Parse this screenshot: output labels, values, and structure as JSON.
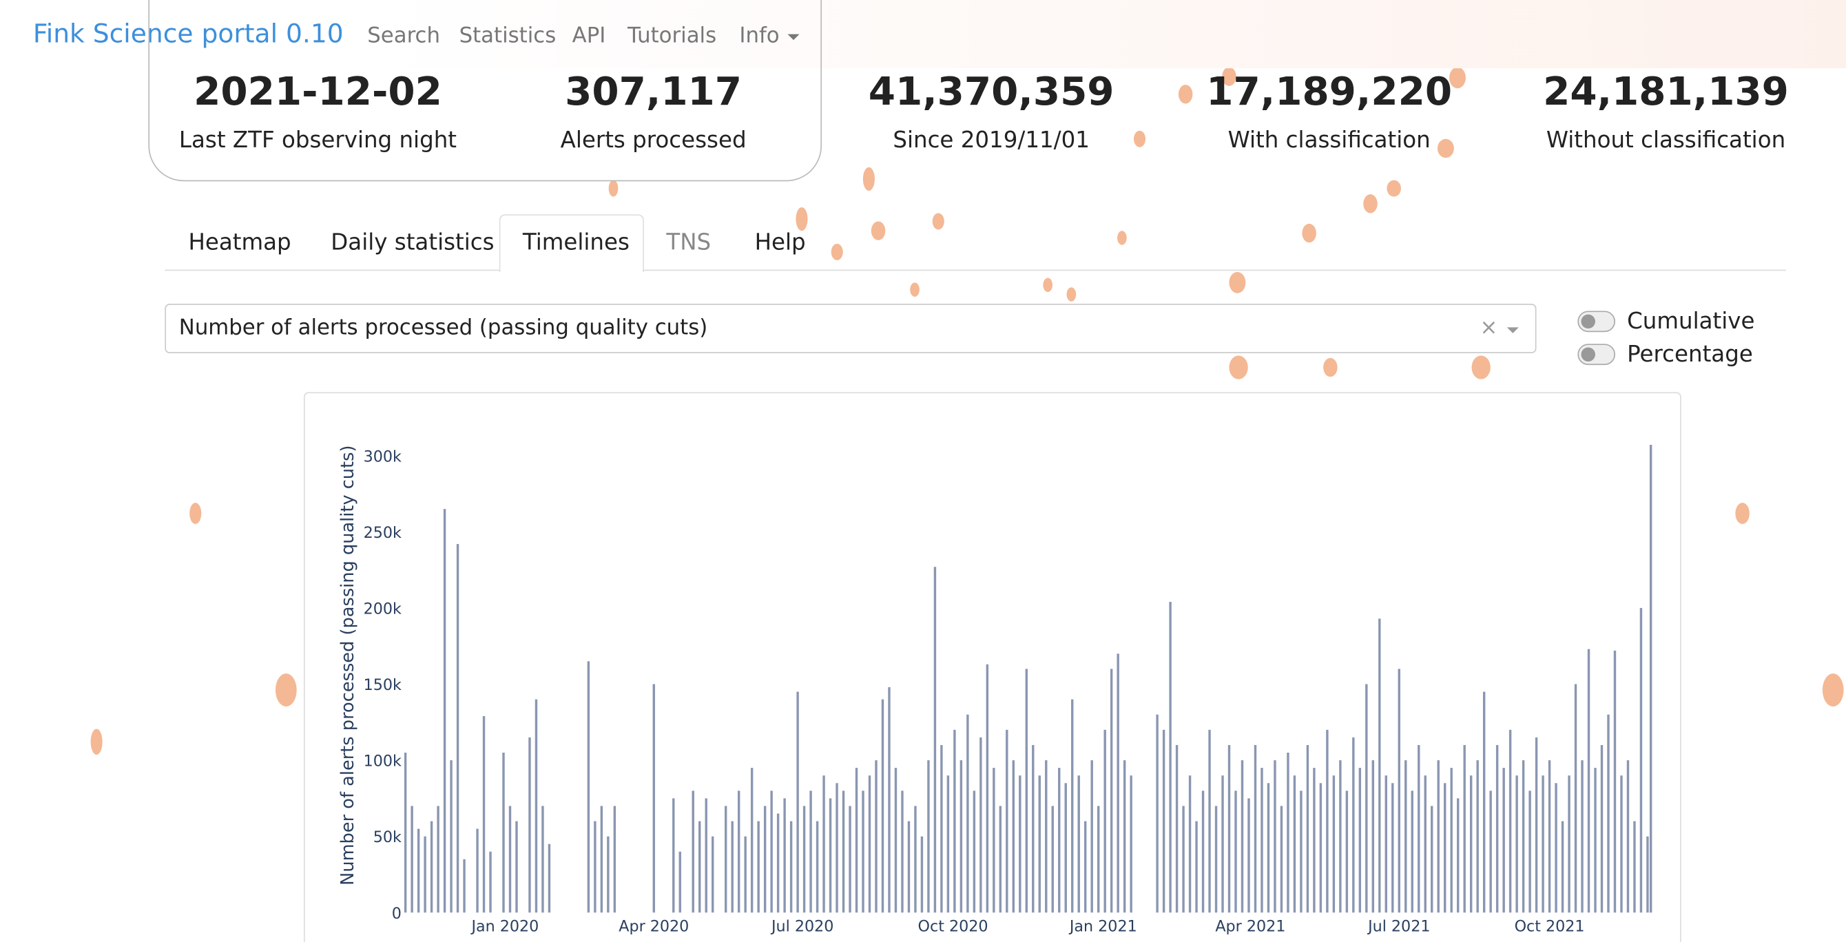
{
  "navbar": {
    "brand": "Fink Science portal 0.10",
    "links": [
      "Search",
      "Statistics",
      "API",
      "Tutorials",
      "Info"
    ]
  },
  "stats": [
    {
      "value": "2021-12-02",
      "label": "Last ZTF observing night"
    },
    {
      "value": "307,117",
      "label": "Alerts processed"
    },
    {
      "value": "41,370,359",
      "label": "Since 2019/11/01"
    },
    {
      "value": "17,189,220",
      "label": "With classification"
    },
    {
      "value": "24,181,139",
      "label": "Without classification"
    }
  ],
  "tabs": [
    "Heatmap",
    "Daily statistics",
    "Timelines",
    "TNS",
    "Help"
  ],
  "dropdown": {
    "selected": "Number of alerts processed (passing quality cuts)",
    "clear": "×"
  },
  "toggles": [
    "Cumulative",
    "Percentage"
  ],
  "chart_data": {
    "type": "bar",
    "y_label": "Number of alerts processed (passing quality cuts)",
    "color": "#8a96b1",
    "x": [
      0,
      4,
      8,
      12,
      16,
      20,
      24,
      28,
      32,
      36,
      40,
      44,
      48,
      52,
      56,
      60,
      64,
      68,
      72,
      76,
      80,
      84,
      88,
      92,
      96,
      100,
      104,
      108,
      112,
      116,
      120,
      124,
      128,
      132,
      136,
      140,
      144,
      148,
      152,
      156,
      160,
      164,
      168,
      172,
      176,
      180,
      184,
      188,
      192,
      196,
      200,
      204,
      208,
      212,
      216,
      220,
      224,
      228,
      232,
      236,
      240,
      244,
      248,
      252,
      256,
      260,
      264,
      268,
      272,
      276,
      280,
      284,
      288,
      292,
      296,
      300,
      304,
      308,
      312,
      316,
      320,
      324,
      328,
      332,
      336,
      340,
      344,
      348,
      352,
      356,
      360,
      364,
      368,
      372,
      376,
      380,
      384,
      388,
      392,
      396,
      400,
      404,
      408,
      412,
      416,
      420,
      424,
      428,
      432,
      436,
      440,
      444,
      448,
      452,
      456,
      460,
      464,
      468,
      472,
      476,
      480,
      484,
      488,
      492,
      496,
      500,
      504,
      508,
      512,
      516,
      520,
      524,
      528,
      532,
      536,
      540,
      544,
      548,
      552,
      556,
      560,
      564,
      568,
      572,
      576,
      580,
      584,
      588,
      592,
      596,
      600,
      604,
      608,
      612,
      616,
      620,
      624,
      628,
      632,
      636,
      640,
      644,
      648,
      652,
      656,
      660,
      664,
      668,
      672,
      676,
      680,
      684,
      688,
      692,
      696,
      700,
      704,
      708,
      712,
      716,
      720,
      724,
      728,
      732,
      736,
      740,
      744,
      748,
      752,
      756,
      760,
      762
    ],
    "values": [
      105000,
      70000,
      55000,
      50000,
      60000,
      70000,
      265000,
      100000,
      242000,
      35000,
      null,
      55000,
      129000,
      40000,
      null,
      105000,
      70000,
      60000,
      null,
      115000,
      140000,
      70000,
      45000,
      null,
      null,
      null,
      null,
      null,
      165000,
      60000,
      70000,
      50000,
      70000,
      null,
      null,
      null,
      null,
      null,
      150000,
      null,
      null,
      75000,
      40000,
      null,
      80000,
      60000,
      75000,
      50000,
      null,
      70000,
      60000,
      80000,
      50000,
      95000,
      60000,
      70000,
      80000,
      65000,
      75000,
      60000,
      145000,
      70000,
      80000,
      60000,
      90000,
      75000,
      85000,
      80000,
      70000,
      95000,
      80000,
      90000,
      100000,
      140000,
      148000,
      95000,
      80000,
      60000,
      70000,
      50000,
      100000,
      227000,
      110000,
      90000,
      120000,
      100000,
      130000,
      80000,
      115000,
      163000,
      95000,
      70000,
      120000,
      100000,
      90000,
      160000,
      110000,
      90000,
      100000,
      70000,
      95000,
      85000,
      140000,
      90000,
      60000,
      100000,
      70000,
      120000,
      160000,
      170000,
      100000,
      90000,
      null,
      null,
      null,
      130000,
      120000,
      204000,
      110000,
      70000,
      90000,
      60000,
      80000,
      120000,
      70000,
      90000,
      110000,
      80000,
      100000,
      75000,
      110000,
      95000,
      85000,
      100000,
      70000,
      105000,
      90000,
      80000,
      110000,
      95000,
      85000,
      120000,
      90000,
      100000,
      80000,
      115000,
      95000,
      150000,
      100000,
      193000,
      90000,
      85000,
      160000,
      100000,
      80000,
      110000,
      90000,
      70000,
      100000,
      85000,
      95000,
      75000,
      110000,
      90000,
      100000,
      145000,
      80000,
      110000,
      95000,
      120000,
      90000,
      100000,
      80000,
      115000,
      90000,
      100000,
      85000,
      60000,
      90000,
      150000,
      100000,
      173000,
      95000,
      110000,
      130000,
      172000,
      90000,
      100000,
      60000,
      200000,
      50000,
      307117
    ],
    "xlim": [
      -1,
      764
    ],
    "xticks": [
      {
        "value": 61,
        "label": "Jan 2020"
      },
      {
        "value": 152,
        "label": "Apr 2020"
      },
      {
        "value": 243,
        "label": "Jul 2020"
      },
      {
        "value": 335,
        "label": "Oct 2020"
      },
      {
        "value": 427,
        "label": "Jan 2021"
      },
      {
        "value": 517,
        "label": "Apr 2021"
      },
      {
        "value": 608,
        "label": "Jul 2021"
      },
      {
        "value": 700,
        "label": "Oct 2021"
      }
    ],
    "ylim": [
      0,
      317000
    ],
    "yticks": [
      0,
      {
        "value": 50000,
        "label": "50k"
      },
      {
        "value": 100000,
        "label": "100k"
      },
      {
        "value": 150000,
        "label": "150k"
      },
      {
        "value": 200000,
        "label": "200k"
      },
      {
        "value": 250000,
        "label": "250k"
      },
      {
        "value": 300000,
        "label": "300k"
      }
    ]
  }
}
